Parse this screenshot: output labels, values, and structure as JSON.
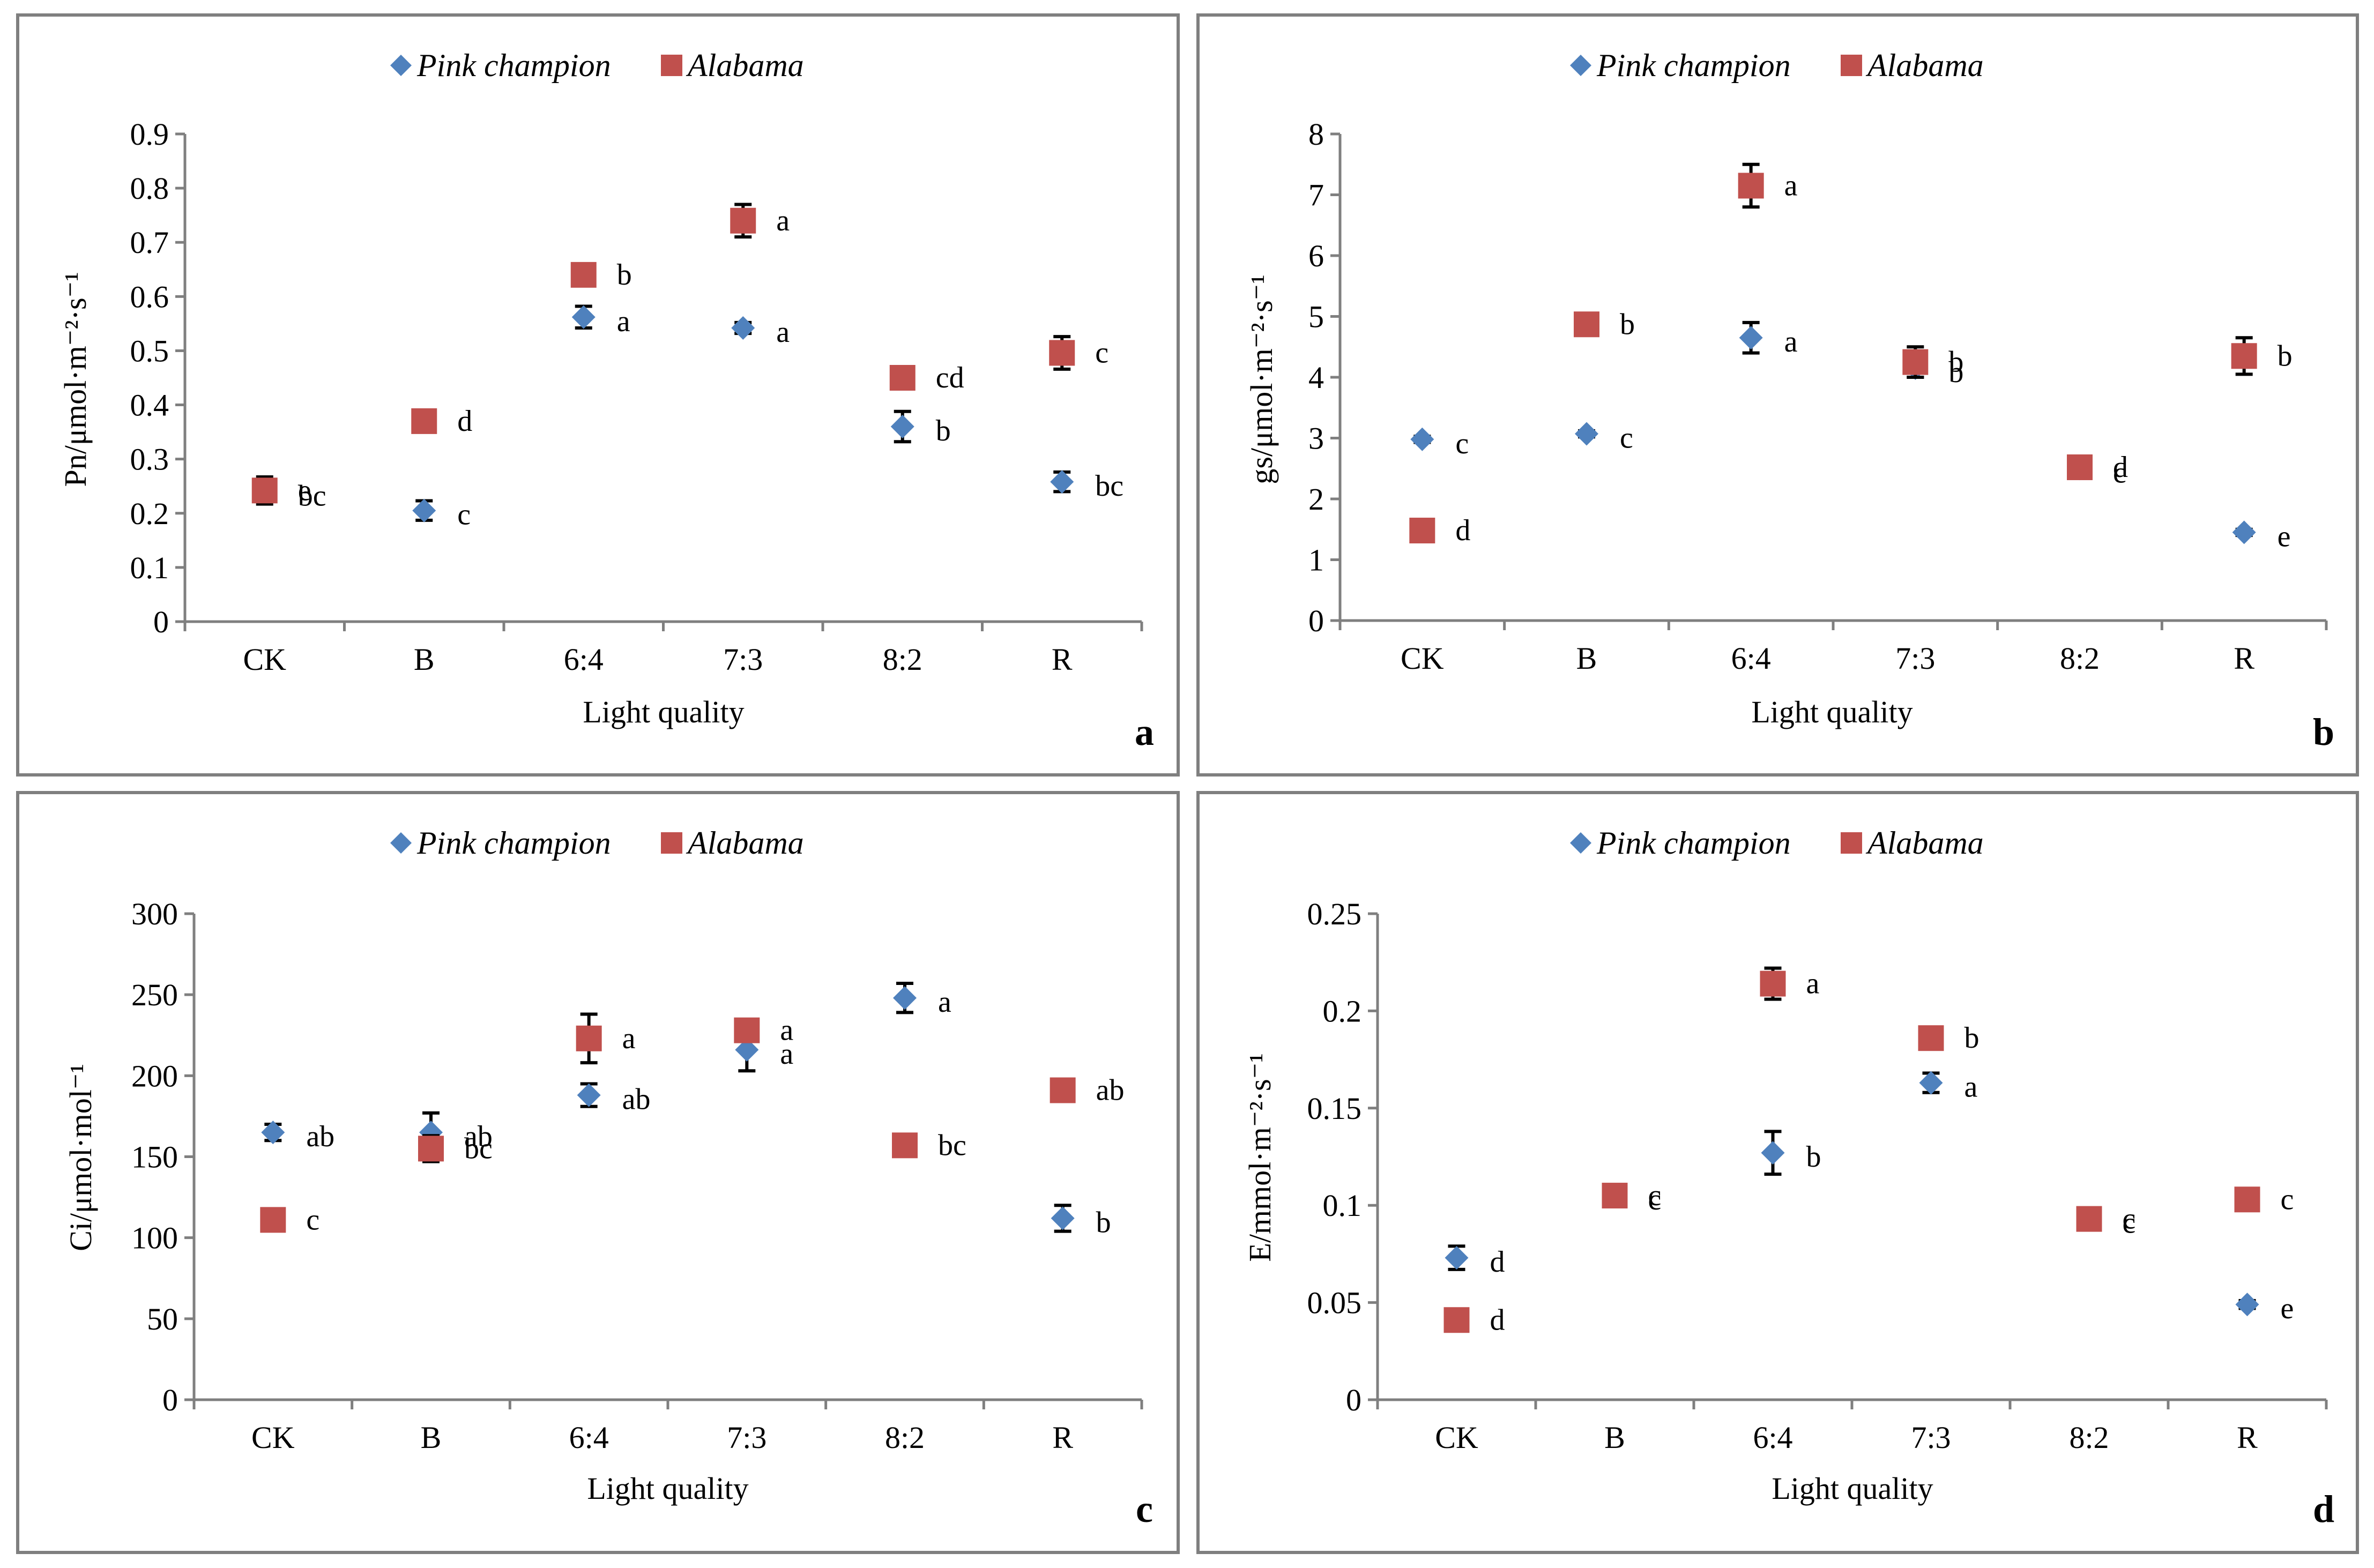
{
  "chart_data": [
    {
      "type": "scatter",
      "panel": "a",
      "xlabel": "Light quality",
      "ylabel": "Pn/μmol·m⁻²·s⁻¹",
      "ylim": [
        0,
        0.9
      ],
      "yticks": [
        "0",
        "0.1",
        "0.2",
        "0.3",
        "0.4",
        "0.5",
        "0.6",
        "0.7",
        "0.8",
        "0.9"
      ],
      "categories": [
        "CK",
        "B",
        "6:4",
        "7:3",
        "8:2",
        "R"
      ],
      "series": [
        {
          "name": "Pink champion",
          "color": "#4f81bd",
          "marker": "diamond",
          "values": [
            0.24,
            0.205,
            0.562,
            0.542,
            0.36,
            0.258
          ],
          "errors": [
            0.0,
            0.018,
            0.02,
            0.01,
            0.028,
            0.018
          ],
          "letters": [
            "bc",
            "c",
            "a",
            "a",
            "b",
            "bc"
          ]
        },
        {
          "name": "Alabama",
          "color": "#c0504d",
          "marker": "square",
          "values": [
            0.242,
            0.37,
            0.64,
            0.74,
            0.45,
            0.496
          ],
          "errors": [
            0.025,
            0.015,
            0.005,
            0.03,
            0.005,
            0.03
          ],
          "letters": [
            "e",
            "d",
            "b",
            "a",
            "cd",
            "c"
          ]
        }
      ]
    },
    {
      "type": "scatter",
      "panel": "b",
      "xlabel": "Light quality",
      "ylabel": "gs/μmol·m⁻²·s⁻¹",
      "ylim": [
        0,
        8
      ],
      "yticks": [
        "0",
        "1",
        "2",
        "3",
        "4",
        "5",
        "6",
        "7",
        "8"
      ],
      "categories": [
        "CK",
        "B",
        "6:4",
        "7:3",
        "8:2",
        "R"
      ],
      "series": [
        {
          "name": "Pink champion",
          "color": "#4f81bd",
          "marker": "diamond",
          "values": [
            2.98,
            3.07,
            4.65,
            4.15,
            2.5,
            1.45
          ],
          "errors": [
            0.05,
            0.05,
            0.25,
            0.15,
            0.05,
            0.05
          ],
          "letters": [
            "c",
            "c",
            "a",
            "b",
            "c",
            "e"
          ]
        },
        {
          "name": "Alabama",
          "color": "#c0504d",
          "marker": "square",
          "values": [
            1.48,
            4.87,
            7.15,
            4.25,
            2.52,
            4.35
          ],
          "errors": [
            0.05,
            0.05,
            0.35,
            0.25,
            0.05,
            0.3
          ],
          "letters": [
            "d",
            "b",
            "a",
            "b",
            "d",
            "b"
          ]
        }
      ]
    },
    {
      "type": "scatter",
      "panel": "c",
      "xlabel": "Light quality",
      "ylabel": "Ci/μmol·mol⁻¹",
      "ylim": [
        0,
        300
      ],
      "yticks": [
        "0",
        "50",
        "100",
        "150",
        "200",
        "250",
        "300"
      ],
      "categories": [
        "CK",
        "B",
        "6:4",
        "7:3",
        "8:2",
        "R"
      ],
      "series": [
        {
          "name": "Pink champion",
          "color": "#4f81bd",
          "marker": "diamond",
          "values": [
            165,
            165,
            188,
            216,
            248,
            112
          ],
          "errors": [
            5,
            12,
            7,
            13,
            9,
            8
          ],
          "letters": [
            "ab",
            "ab",
            "ab",
            "a",
            "a",
            "b"
          ]
        },
        {
          "name": "Alabama",
          "color": "#c0504d",
          "marker": "square",
          "values": [
            111,
            155,
            223,
            228,
            157,
            191
          ],
          "errors": [
            3,
            8,
            15,
            5,
            3,
            3
          ],
          "letters": [
            "c",
            "bc",
            "a",
            "a",
            "bc",
            "ab"
          ]
        }
      ]
    },
    {
      "type": "scatter",
      "panel": "d",
      "xlabel": "Light quality",
      "ylabel": "E/mmol·m⁻²·s⁻¹",
      "ylim": [
        0,
        0.25
      ],
      "yticks": [
        "0",
        "0.05",
        "0.1",
        "0.15",
        "0.2",
        "0.25"
      ],
      "categories": [
        "CK",
        "B",
        "6:4",
        "7:3",
        "8:2",
        "R"
      ],
      "series": [
        {
          "name": "Pink champion",
          "color": "#4f81bd",
          "marker": "diamond",
          "values": [
            0.073,
            0.105,
            0.127,
            0.163,
            0.093,
            0.049
          ],
          "errors": [
            0.006,
            0.002,
            0.011,
            0.005,
            0.002,
            0.002
          ],
          "letters": [
            "d",
            "c",
            "b",
            "a",
            "c",
            "e"
          ]
        },
        {
          "name": "Alabama",
          "color": "#c0504d",
          "marker": "square",
          "values": [
            0.041,
            0.105,
            0.214,
            0.186,
            0.093,
            0.103
          ],
          "errors": [
            0.002,
            0.002,
            0.008,
            0.002,
            0.002,
            0.002
          ],
          "letters": [
            "d",
            "c",
            "a",
            "b",
            "c",
            "c"
          ]
        }
      ]
    }
  ]
}
